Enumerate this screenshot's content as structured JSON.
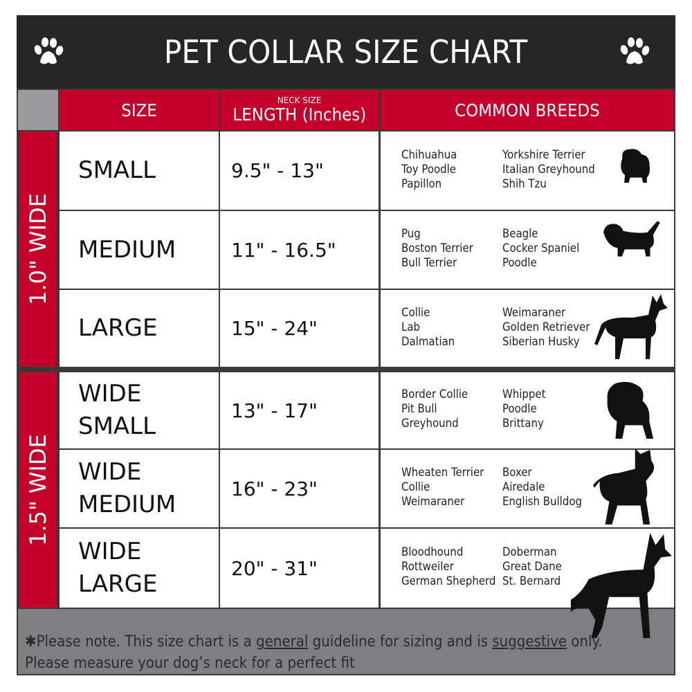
{
  "title": "PET COLLAR SIZE CHART",
  "colors": {
    "accent": "#c4002b",
    "title_bg": "#262626",
    "footer_bg": "#7f7f83"
  },
  "headers": {
    "size": "SIZE",
    "length_sup": "NECK SIZE",
    "length": "LENGTH (Inches)",
    "breeds": "COMMON BREEDS"
  },
  "groups": [
    {
      "label": "1.0\" WIDE"
    },
    {
      "label": "1.5\" WIDE"
    }
  ],
  "rows": [
    {
      "size": [
        "SMALL"
      ],
      "length": "9.5\" - 13\"",
      "breeds_a": [
        "Chihuahua",
        "Toy Poodle",
        "Papillon"
      ],
      "breeds_b": [
        "Yorkshire Terrier",
        "Italian Greyhound",
        "Shih Tzu"
      ],
      "icon": "small-dog-icon"
    },
    {
      "size": [
        "MEDIUM"
      ],
      "length": "11\" - 16.5\"",
      "breeds_a": [
        "Pug",
        "Boston Terrier",
        "Bull Terrier"
      ],
      "breeds_b": [
        "Beagle",
        "Cocker Spaniel",
        "Poodle"
      ],
      "icon": "dachshund-icon"
    },
    {
      "size": [
        "LARGE"
      ],
      "length": "15\" - 24\"",
      "breeds_a": [
        "Collie",
        "Lab",
        "Dalmatian"
      ],
      "breeds_b": [
        "Weimaraner",
        "Golden Retriever",
        "Siberian Husky"
      ],
      "icon": "shepherd-dog-icon"
    },
    {
      "size": [
        "WIDE",
        "SMALL"
      ],
      "length": "13\" - 17\"",
      "breeds_a": [
        "Border Collie",
        "Pit Bull",
        "Greyhound"
      ],
      "breeds_b": [
        "Whippet",
        "Poodle",
        "Brittany"
      ],
      "icon": "bulldog-icon"
    },
    {
      "size": [
        "WIDE",
        "MEDIUM"
      ],
      "length": "16\" - 23\"",
      "breeds_a": [
        "Wheaten Terrier",
        "Collie",
        "Weimaraner"
      ],
      "breeds_b": [
        "Boxer",
        "Airedale",
        "English Bulldog"
      ],
      "icon": "pitbull-icon"
    },
    {
      "size": [
        "WIDE",
        "LARGE"
      ],
      "length": "20\" - 31\"",
      "breeds_a": [
        "Bloodhound",
        "Rottweiler",
        "German Shepherd"
      ],
      "breeds_b": [
        "Doberman",
        "Great Dane",
        "St. Bernard"
      ],
      "icon": "doberman-icon"
    }
  ],
  "footer": {
    "line1_a": "✱Please note. This size chart is a ",
    "line1_u1": "general",
    "line1_b": " guideline for sizing and is ",
    "line1_u2": "suggestive",
    "line1_c": " only.",
    "line2": "Please measure your dog’s neck for a perfect fit"
  }
}
